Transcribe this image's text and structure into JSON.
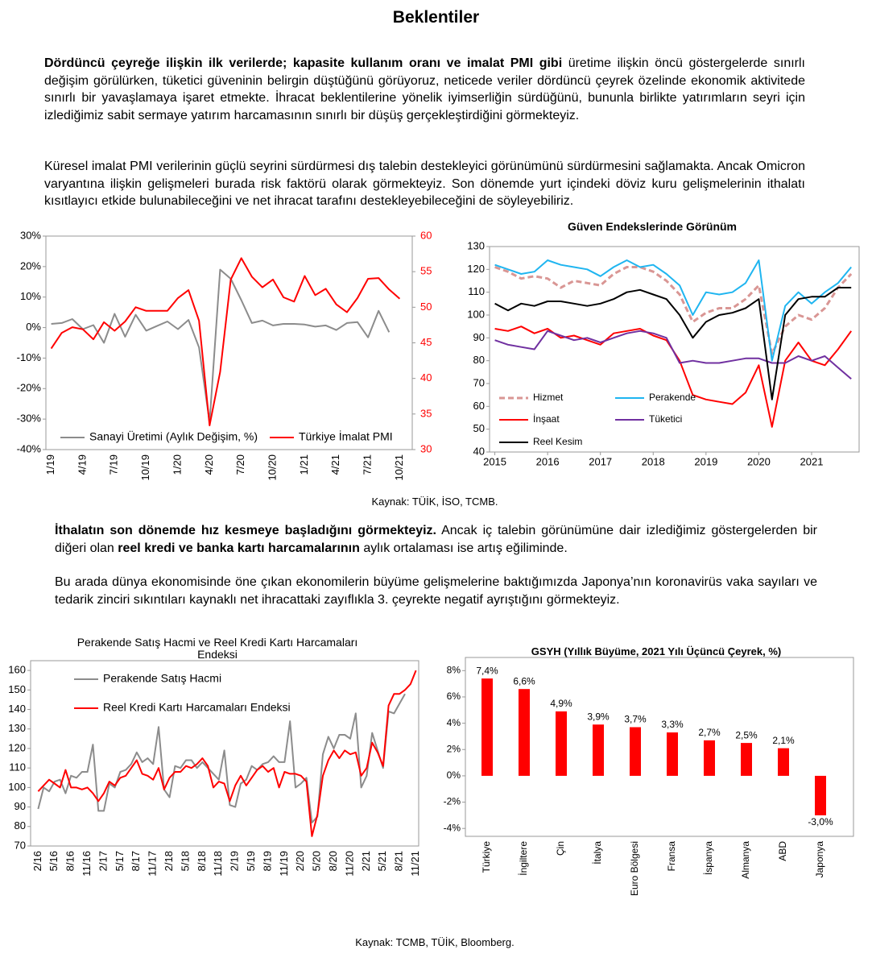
{
  "title": "Beklentiler",
  "paragraphs": [
    {
      "runs": [
        {
          "text": "Dördüncü çeyreğe ilişkin ilk verilerde; kapasite kullanım oranı ve imalat PMI gibi",
          "bold": true
        },
        {
          "text": " üretime ilişkin öncü göstergelerde sınırlı değişim görülürken, tüketici güveninin belirgin düştüğünü görüyoruz, neticede veriler dördüncü çeyrek özelinde ekonomik aktivitede sınırlı bir yavaşlamaya işaret etmekte. İhracat beklentilerine yönelik iyimserliğin sürdüğünü, bununla birlikte yatırımların seyri için izlediğimiz sabit sermaye yatırım harcamasının sınırlı bir düşüş gerçekleştirdiğini görmekteyiz.",
          "bold": false
        }
      ]
    },
    {
      "runs": [
        {
          "text": "Küresel imalat PMI verilerinin güçlü seyrini sürdürmesi dış talebin destekleyici görünümünü sürdürmesini sağlamakta. Ancak Omicron varyantına ilişkin gelişmeleri burada risk faktörü olarak görmekteyiz. Son dönemde yurt içindeki döviz kuru gelişmelerinin ithalatı kısıtlayıcı etkide bulunabileceğini ve net ihracat tarafını destekleyebileceğini de söyleyebiliriz.",
          "bold": false
        }
      ]
    },
    {
      "runs": [
        {
          "text": "İthalatın son dönemde hız kesmeye başladığını görmekteyiz.",
          "bold": true
        },
        {
          "text": " Ancak iç talebin görünümüne dair izlediğimiz göstergelerden bir diğeri olan ",
          "bold": false
        },
        {
          "text": "reel kredi ve banka kartı harcamalarının",
          "bold": true
        },
        {
          "text": " aylık ortalaması ise artış eğiliminde.",
          "bold": false
        }
      ]
    },
    {
      "runs": [
        {
          "text": "Bu arada dünya ekonomisinde öne çıkan ekonomilerin büyüme gelişmelerine baktığımızda Japonya’nın koronavirüs vaka sayıları ve tedarik zinciri sıkıntıları kaynaklı net ihracattaki zayıflıkla 3. çeyrekte negatif ayrıştığını görmekteyiz.",
          "bold": false
        }
      ]
    }
  ],
  "sources": [
    "Kaynak: TÜİK, İSO, TCMB.",
    "Kaynak: TCMB, TÜİK, Bloomberg."
  ],
  "chart_data": [
    {
      "type": "line",
      "categories": [
        "1/19",
        null,
        null,
        "4/19",
        null,
        null,
        "7/19",
        null,
        null,
        "10/19",
        null,
        null,
        "1/20",
        null,
        null,
        "4/20",
        null,
        null,
        "7/20",
        null,
        null,
        "10/20",
        null,
        null,
        "1/21",
        null,
        null,
        "4/21",
        null,
        null,
        "7/21",
        null,
        null,
        "10/21"
      ],
      "ylim": [
        -40,
        30
      ],
      "yticks": [
        {
          "value": 30,
          "label": "30%"
        },
        {
          "value": 20,
          "label": "20%"
        },
        {
          "value": 10,
          "label": "10%"
        },
        {
          "value": 0,
          "label": "0%"
        },
        {
          "value": -10,
          "label": "-10%"
        },
        {
          "value": -20,
          "label": "-20%"
        },
        {
          "value": -30,
          "label": "-30%"
        },
        {
          "value": -40,
          "label": "-40%"
        }
      ],
      "y2lim": [
        30,
        60
      ],
      "y2ticks": [
        60,
        55,
        50,
        45,
        40,
        35,
        30
      ],
      "series": [
        {
          "name": "Sanayi Üretimi (Aylık Değişim, %)",
          "color": "#8c8c8c",
          "values": [
            1.2,
            1.5,
            2.8,
            -0.5,
            0.8,
            -5,
            4.5,
            -3,
            4.2,
            -1,
            0.5,
            2,
            -0.5,
            2.5,
            -6.5,
            -31,
            19,
            16,
            9,
            1.5,
            2.3,
            0.7,
            1.2,
            1.2,
            1,
            0.3,
            0.7,
            -0.8,
            1.5,
            1.8,
            -3.2,
            5.5,
            -1.5,
            null
          ]
        },
        {
          "name": "Türkiye İmalat PMI",
          "color": "#ff0000",
          "axis": "y2",
          "values": [
            44.2,
            46.4,
            47.2,
            46.9,
            45.5,
            47.9,
            46.7,
            48,
            50,
            49.5,
            49.5,
            49.5,
            51.3,
            52.4,
            48.1,
            33.4,
            40.9,
            53.9,
            56.9,
            54.3,
            52.8,
            53.9,
            51.4,
            50.8,
            54.4,
            51.7,
            52.6,
            50.4,
            49.3,
            51.3,
            54,
            54.1,
            52.5,
            51.2
          ]
        }
      ]
    },
    {
      "type": "line",
      "title": "Güven Endekslerinde Görünüm",
      "x": [
        2015,
        2015.25,
        2015.5,
        2015.75,
        2016,
        2016.25,
        2016.5,
        2016.75,
        2017,
        2017.25,
        2017.5,
        2017.75,
        2018,
        2018.25,
        2018.5,
        2018.75,
        2019,
        2019.25,
        2019.5,
        2019.75,
        2020,
        2020.25,
        2020.5,
        2020.75,
        2021,
        2021.25,
        2021.5,
        2021.75
      ],
      "xlim": [
        2014.9,
        2021.9
      ],
      "xticks": [
        2015,
        2016,
        2017,
        2018,
        2019,
        2020,
        2021
      ],
      "ylim": [
        40,
        130
      ],
      "yticks": [
        130,
        120,
        110,
        100,
        90,
        80,
        70,
        60,
        50,
        40
      ],
      "series": [
        {
          "name": "Hizmet",
          "color": "#d99694",
          "dash": true,
          "values": [
            121,
            119,
            116,
            117,
            116,
            112,
            115,
            114,
            113,
            118,
            121,
            121,
            119,
            115,
            109,
            97,
            101,
            103,
            103,
            107,
            113,
            83,
            95,
            100,
            98,
            103,
            112,
            118
          ]
        },
        {
          "name": "Perakende",
          "color": "#1fb5f0",
          "values": [
            122,
            120,
            118,
            119,
            124,
            122,
            121,
            120,
            117,
            121,
            124,
            121,
            122,
            118,
            113,
            100,
            110,
            109,
            110,
            114,
            124,
            80,
            104,
            110,
            105,
            110,
            114,
            121
          ]
        },
        {
          "name": "İnşaat",
          "color": "#ff0000",
          "values": [
            94,
            93,
            95,
            92,
            94,
            90,
            91,
            89,
            87,
            92,
            93,
            94,
            91,
            89,
            80,
            65,
            63,
            62,
            61,
            66,
            78,
            51,
            80,
            88,
            80,
            78,
            85,
            93
          ]
        },
        {
          "name": "Tüketici",
          "color": "#7030a0",
          "values": [
            89,
            87,
            86,
            85,
            93,
            91,
            89,
            90,
            88,
            90,
            92,
            93,
            92,
            90,
            79,
            80,
            79,
            79,
            80,
            81,
            81,
            79,
            79,
            82,
            80,
            82,
            77,
            72
          ]
        },
        {
          "name": "Reel Kesim",
          "color": "#000000",
          "values": [
            105,
            102,
            105,
            104,
            106,
            106,
            105,
            104,
            105,
            107,
            110,
            111,
            109,
            107,
            100,
            90,
            97,
            100,
            101,
            103,
            107,
            63,
            100,
            107,
            108,
            108,
            112,
            112
          ]
        }
      ]
    },
    {
      "type": "line",
      "title": "Perakende Satış Hacmi ve Reel Kredi Kartı Harcamaları Endeksi",
      "categories": [
        "2/16",
        null,
        null,
        "5/16",
        null,
        null,
        "8/16",
        null,
        null,
        "11/16",
        null,
        null,
        "2/17",
        null,
        null,
        "5/17",
        null,
        null,
        "8/17",
        null,
        null,
        "11/17",
        null,
        null,
        "2/18",
        null,
        null,
        "5/18",
        null,
        null,
        "8/18",
        null,
        null,
        "11/18",
        null,
        null,
        "2/19",
        null,
        null,
        "5/19",
        null,
        null,
        "8/19",
        null,
        null,
        "11/19",
        null,
        null,
        "2/20",
        null,
        null,
        "5/20",
        null,
        null,
        "8/20",
        null,
        null,
        "11/20",
        null,
        null,
        "2/21",
        null,
        null,
        "5/21",
        null,
        null,
        "8/21",
        null,
        null,
        "11/21"
      ],
      "ylim": [
        70,
        165
      ],
      "yticks": [
        160,
        150,
        140,
        130,
        120,
        110,
        100,
        90,
        80,
        70
      ],
      "series": [
        {
          "name": "Perakende Satış Hacmi",
          "color": "#8c8c8c",
          "values": [
            89,
            100,
            98,
            103,
            104,
            97,
            106,
            105,
            108,
            108,
            122,
            88,
            88,
            102,
            100,
            108,
            109,
            112,
            118,
            113,
            115,
            112,
            131,
            99,
            95,
            111,
            110,
            114,
            114,
            110,
            113,
            110,
            107,
            104,
            119,
            91,
            90,
            102,
            104,
            111,
            109,
            112,
            113,
            116,
            113,
            113,
            134,
            100,
            102,
            105,
            82,
            85,
            117,
            126,
            120,
            127,
            127,
            125,
            138,
            100,
            106,
            128,
            119,
            110,
            139,
            138,
            143,
            148,
            null,
            null
          ]
        },
        {
          "name": "Reel Kredi Kartı Harcamaları Endeksi",
          "color": "#ff0000",
          "values": [
            98,
            101,
            104,
            102,
            100,
            109,
            100,
            100,
            99,
            100,
            97,
            93,
            97,
            103,
            101,
            105,
            106,
            110,
            114,
            107,
            106,
            104,
            110,
            99,
            105,
            108,
            108,
            111,
            110,
            112,
            115,
            111,
            100,
            103,
            102,
            93,
            101,
            106,
            101,
            105,
            109,
            111,
            108,
            110,
            100,
            108,
            107,
            107,
            106,
            103,
            75,
            86,
            106,
            114,
            119,
            115,
            119,
            117,
            118,
            106,
            110,
            123,
            118,
            111,
            142,
            148,
            148,
            150,
            153,
            160
          ]
        }
      ]
    },
    {
      "type": "bar",
      "title": "GSYH (Yıllık Büyüme, 2021 Yılı Üçüncü Çeyrek, %)",
      "categories": [
        "Türkiye",
        "İngiltere",
        "Çin",
        "İtalya",
        "Euro Bölgesi",
        "Fransa",
        "İspanya",
        "Almanya",
        "ABD",
        "Japonya"
      ],
      "values": [
        7.4,
        6.6,
        4.9,
        3.9,
        3.7,
        3.3,
        2.7,
        2.5,
        2.1,
        -3.0
      ],
      "value_labels": [
        "7,4%",
        "6,6%",
        "4,9%",
        "3,9%",
        "3,7%",
        "3,3%",
        "2,7%",
        "2,5%",
        "2,1%",
        "-3,0%"
      ],
      "color": "#ff0000",
      "ylim": [
        -4.6,
        9
      ],
      "yticks": [
        {
          "value": 8,
          "label": "8%"
        },
        {
          "value": 6,
          "label": "6%"
        },
        {
          "value": 4,
          "label": "4%"
        },
        {
          "value": 2,
          "label": "2%"
        },
        {
          "value": 0,
          "label": "0%"
        },
        {
          "value": -2,
          "label": "-2%"
        },
        {
          "value": -4,
          "label": "-4%"
        }
      ]
    }
  ]
}
